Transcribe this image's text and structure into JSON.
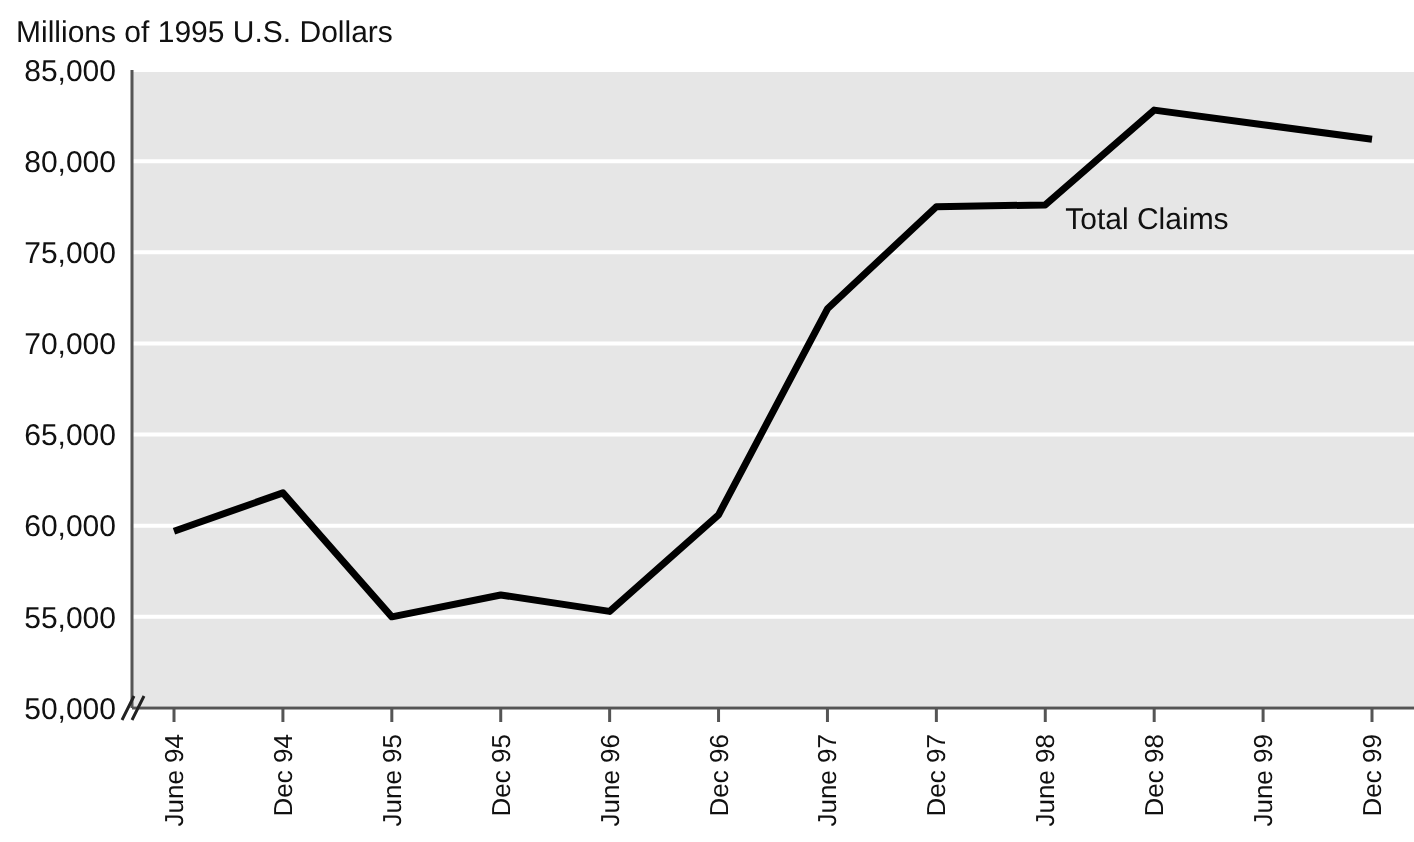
{
  "chart_data": {
    "type": "line",
    "ylabel": "Millions of 1995 U.S. Dollars",
    "categories": [
      "June 94",
      "Dec 94",
      "June 95",
      "Dec 95",
      "June 96",
      "Dec 96",
      "June 97",
      "Dec 97",
      "June 98",
      "Dec 98",
      "June 99",
      "Dec 99"
    ],
    "series": [
      {
        "name": "Total Claims",
        "color": "#000000",
        "values": [
          59700,
          61800,
          55000,
          56200,
          55300,
          60600,
          71900,
          77500,
          77600,
          82800,
          82000,
          81200
        ]
      }
    ],
    "ylim": [
      50000,
      85000
    ],
    "yticks": [
      {
        "value": 50000,
        "label": "50,000"
      },
      {
        "value": 55000,
        "label": "55,000"
      },
      {
        "value": 60000,
        "label": "60,000"
      },
      {
        "value": 65000,
        "label": "65,000"
      },
      {
        "value": 70000,
        "label": "70,000"
      },
      {
        "value": 75000,
        "label": "75,000"
      },
      {
        "value": 80000,
        "label": "80,000"
      },
      {
        "value": 85000,
        "label": "85,000"
      }
    ],
    "grid": "y",
    "legend": false,
    "marker": "none",
    "line_style": "solid"
  }
}
